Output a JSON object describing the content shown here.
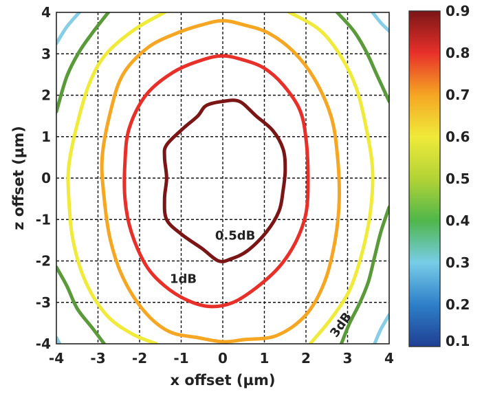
{
  "chart_data": {
    "type": "contour",
    "xlabel": "x offset (µm)",
    "ylabel": "z offset (µm)",
    "xlim": [
      -4,
      4
    ],
    "ylim": [
      -4,
      4
    ],
    "x_ticks": [
      "-4",
      "-3",
      "-2",
      "-1",
      "0",
      "1",
      "2",
      "3",
      "4"
    ],
    "y_ticks": [
      "-4",
      "-3",
      "-2",
      "-1",
      "0",
      "1",
      "2",
      "3",
      "4"
    ],
    "grid": true,
    "colorbar": {
      "ticks": [
        "0.1",
        "0.2",
        "0.3",
        "0.4",
        "0.5",
        "0.6",
        "0.7",
        "0.8",
        "0.9"
      ],
      "range": [
        0.1,
        0.9
      ],
      "colors": [
        "#1f3f93",
        "#2e7fc8",
        "#78cde8",
        "#4fb64b",
        "#b3d336",
        "#f0ea3a",
        "#f5a623",
        "#e8302a",
        "#7a1616"
      ]
    },
    "contours": [
      {
        "level": 0.9,
        "color": "#7a1616",
        "label": "0.5dB",
        "label_at": [
          0.3,
          -1.4
        ],
        "points": [
          [
            -0.4,
            1.75
          ],
          [
            0,
            1.85
          ],
          [
            0.4,
            1.85
          ],
          [
            0.8,
            1.5
          ],
          [
            1.2,
            1.15
          ],
          [
            1.45,
            0.7
          ],
          [
            1.5,
            0.2
          ],
          [
            1.45,
            -0.3
          ],
          [
            1.35,
            -0.8
          ],
          [
            1.05,
            -1.3
          ],
          [
            0.6,
            -1.75
          ],
          [
            0.2,
            -1.95
          ],
          [
            -0.1,
            -2.0
          ],
          [
            -0.5,
            -1.7
          ],
          [
            -1.0,
            -1.35
          ],
          [
            -1.35,
            -1.0
          ],
          [
            -1.4,
            -0.5
          ],
          [
            -1.35,
            0
          ],
          [
            -1.4,
            0.5
          ],
          [
            -1.35,
            0.8
          ],
          [
            -0.95,
            1.2
          ],
          [
            -0.6,
            1.5
          ]
        ]
      },
      {
        "level": 0.8,
        "color": "#e8302a",
        "label": "1dB",
        "label_at": [
          -0.95,
          -2.45
        ],
        "points": [
          [
            -0.5,
            2.85
          ],
          [
            0,
            2.95
          ],
          [
            0.5,
            2.85
          ],
          [
            1.0,
            2.65
          ],
          [
            1.45,
            2.25
          ],
          [
            1.85,
            1.65
          ],
          [
            2.0,
            0.95
          ],
          [
            2.05,
            0
          ],
          [
            2.0,
            -0.85
          ],
          [
            1.75,
            -1.55
          ],
          [
            1.35,
            -2.15
          ],
          [
            0.8,
            -2.65
          ],
          [
            0.25,
            -3.0
          ],
          [
            -0.3,
            -3.1
          ],
          [
            -0.85,
            -2.95
          ],
          [
            -1.4,
            -2.6
          ],
          [
            -1.85,
            -2.1
          ],
          [
            -2.2,
            -1.3
          ],
          [
            -2.35,
            -0.5
          ],
          [
            -2.35,
            0.4
          ],
          [
            -2.25,
            1.2
          ],
          [
            -1.85,
            2.0
          ],
          [
            -1.2,
            2.55
          ]
        ]
      },
      {
        "level": 0.7,
        "color": "#f5a623",
        "label": "",
        "points": [
          [
            -0.5,
            3.7
          ],
          [
            0,
            3.8
          ],
          [
            0.5,
            3.7
          ],
          [
            1.1,
            3.5
          ],
          [
            1.7,
            3.05
          ],
          [
            2.2,
            2.4
          ],
          [
            2.6,
            1.5
          ],
          [
            2.75,
            0.6
          ],
          [
            2.8,
            -0.5
          ],
          [
            2.7,
            -1.5
          ],
          [
            2.45,
            -2.5
          ],
          [
            2.0,
            -3.3
          ],
          [
            1.3,
            -3.8
          ],
          [
            0.5,
            -3.9
          ],
          [
            0,
            -3.95
          ],
          [
            -0.6,
            -3.85
          ],
          [
            -1.3,
            -3.7
          ],
          [
            -1.9,
            -3.2
          ],
          [
            -2.4,
            -2.4
          ],
          [
            -2.7,
            -1.5
          ],
          [
            -2.85,
            -0.5
          ],
          [
            -2.9,
            0.5
          ],
          [
            -2.7,
            1.6
          ],
          [
            -2.4,
            2.5
          ],
          [
            -1.8,
            3.15
          ],
          [
            -1.1,
            3.5
          ]
        ]
      },
      {
        "level": 0.6,
        "color": "#f0ea3a",
        "label": "3dB",
        "label_at": [
          2.85,
          -3.55
        ],
        "points": [
          [
            -1.4,
            4.0
          ],
          [
            -2.1,
            3.6
          ],
          [
            -2.8,
            3.0
          ],
          [
            -3.2,
            2.3
          ],
          [
            -3.5,
            1.3
          ],
          [
            -3.7,
            0.3
          ],
          [
            -3.7,
            -0.5
          ],
          [
            -3.6,
            -1.5
          ],
          [
            -3.3,
            -2.5
          ],
          [
            -2.8,
            -3.3
          ],
          [
            -2.2,
            -3.75
          ],
          [
            -1.6,
            -4.0
          ]
        ]
      },
      {
        "level": 0.6,
        "color": "#f0ea3a",
        "label": "",
        "points": [
          [
            1.6,
            4.0
          ],
          [
            2.3,
            3.6
          ],
          [
            2.8,
            3.0
          ],
          [
            3.2,
            2.2
          ],
          [
            3.45,
            1.2
          ],
          [
            3.6,
            0.2
          ],
          [
            3.55,
            -0.8
          ],
          [
            3.35,
            -1.8
          ],
          [
            3.05,
            -2.7
          ],
          [
            2.6,
            -3.4
          ],
          [
            2.1,
            -4.0
          ]
        ]
      },
      {
        "level": 0.4,
        "color": "#5a9a3a",
        "label": "",
        "points": [
          [
            -2.75,
            4.0
          ],
          [
            -3.1,
            3.55
          ],
          [
            -3.45,
            3.05
          ],
          [
            -3.75,
            2.45
          ],
          [
            -4.0,
            1.6
          ]
        ]
      },
      {
        "level": 0.4,
        "color": "#5a9a3a",
        "label": "",
        "points": [
          [
            -4.0,
            -2.15
          ],
          [
            -3.75,
            -2.6
          ],
          [
            -3.5,
            -3.15
          ],
          [
            -3.15,
            -3.6
          ],
          [
            -2.85,
            -4.0
          ]
        ]
      },
      {
        "level": 0.4,
        "color": "#5a9a3a",
        "label": "",
        "points": [
          [
            2.75,
            4.0
          ],
          [
            3.15,
            3.55
          ],
          [
            3.45,
            3.05
          ],
          [
            3.7,
            2.5
          ],
          [
            4.0,
            1.85
          ]
        ]
      },
      {
        "level": 0.4,
        "color": "#5a9a3a",
        "label": "",
        "points": [
          [
            4.0,
            -0.7
          ],
          [
            3.8,
            -1.3
          ],
          [
            3.65,
            -1.9
          ],
          [
            3.5,
            -2.5
          ],
          [
            3.3,
            -3.0
          ],
          [
            3.05,
            -3.5
          ],
          [
            2.85,
            -4.0
          ]
        ]
      },
      {
        "level": 0.3,
        "color": "#86cde5",
        "label": "",
        "points": [
          [
            -3.45,
            4.0
          ],
          [
            -3.75,
            3.65
          ],
          [
            -4.0,
            3.25
          ]
        ]
      },
      {
        "level": 0.3,
        "color": "#86cde5",
        "label": "",
        "points": [
          [
            3.6,
            4.0
          ],
          [
            3.8,
            3.75
          ],
          [
            4.0,
            3.55
          ]
        ]
      },
      {
        "level": 0.3,
        "color": "#86cde5",
        "label": "",
        "points": [
          [
            4.0,
            -3.3
          ],
          [
            3.8,
            -3.65
          ],
          [
            3.65,
            -4.0
          ]
        ]
      },
      {
        "level": 0.3,
        "color": "#86cde5",
        "label": "",
        "points": [
          [
            -4.0,
            -3.85
          ],
          [
            -3.92,
            -4.0
          ]
        ]
      }
    ]
  }
}
